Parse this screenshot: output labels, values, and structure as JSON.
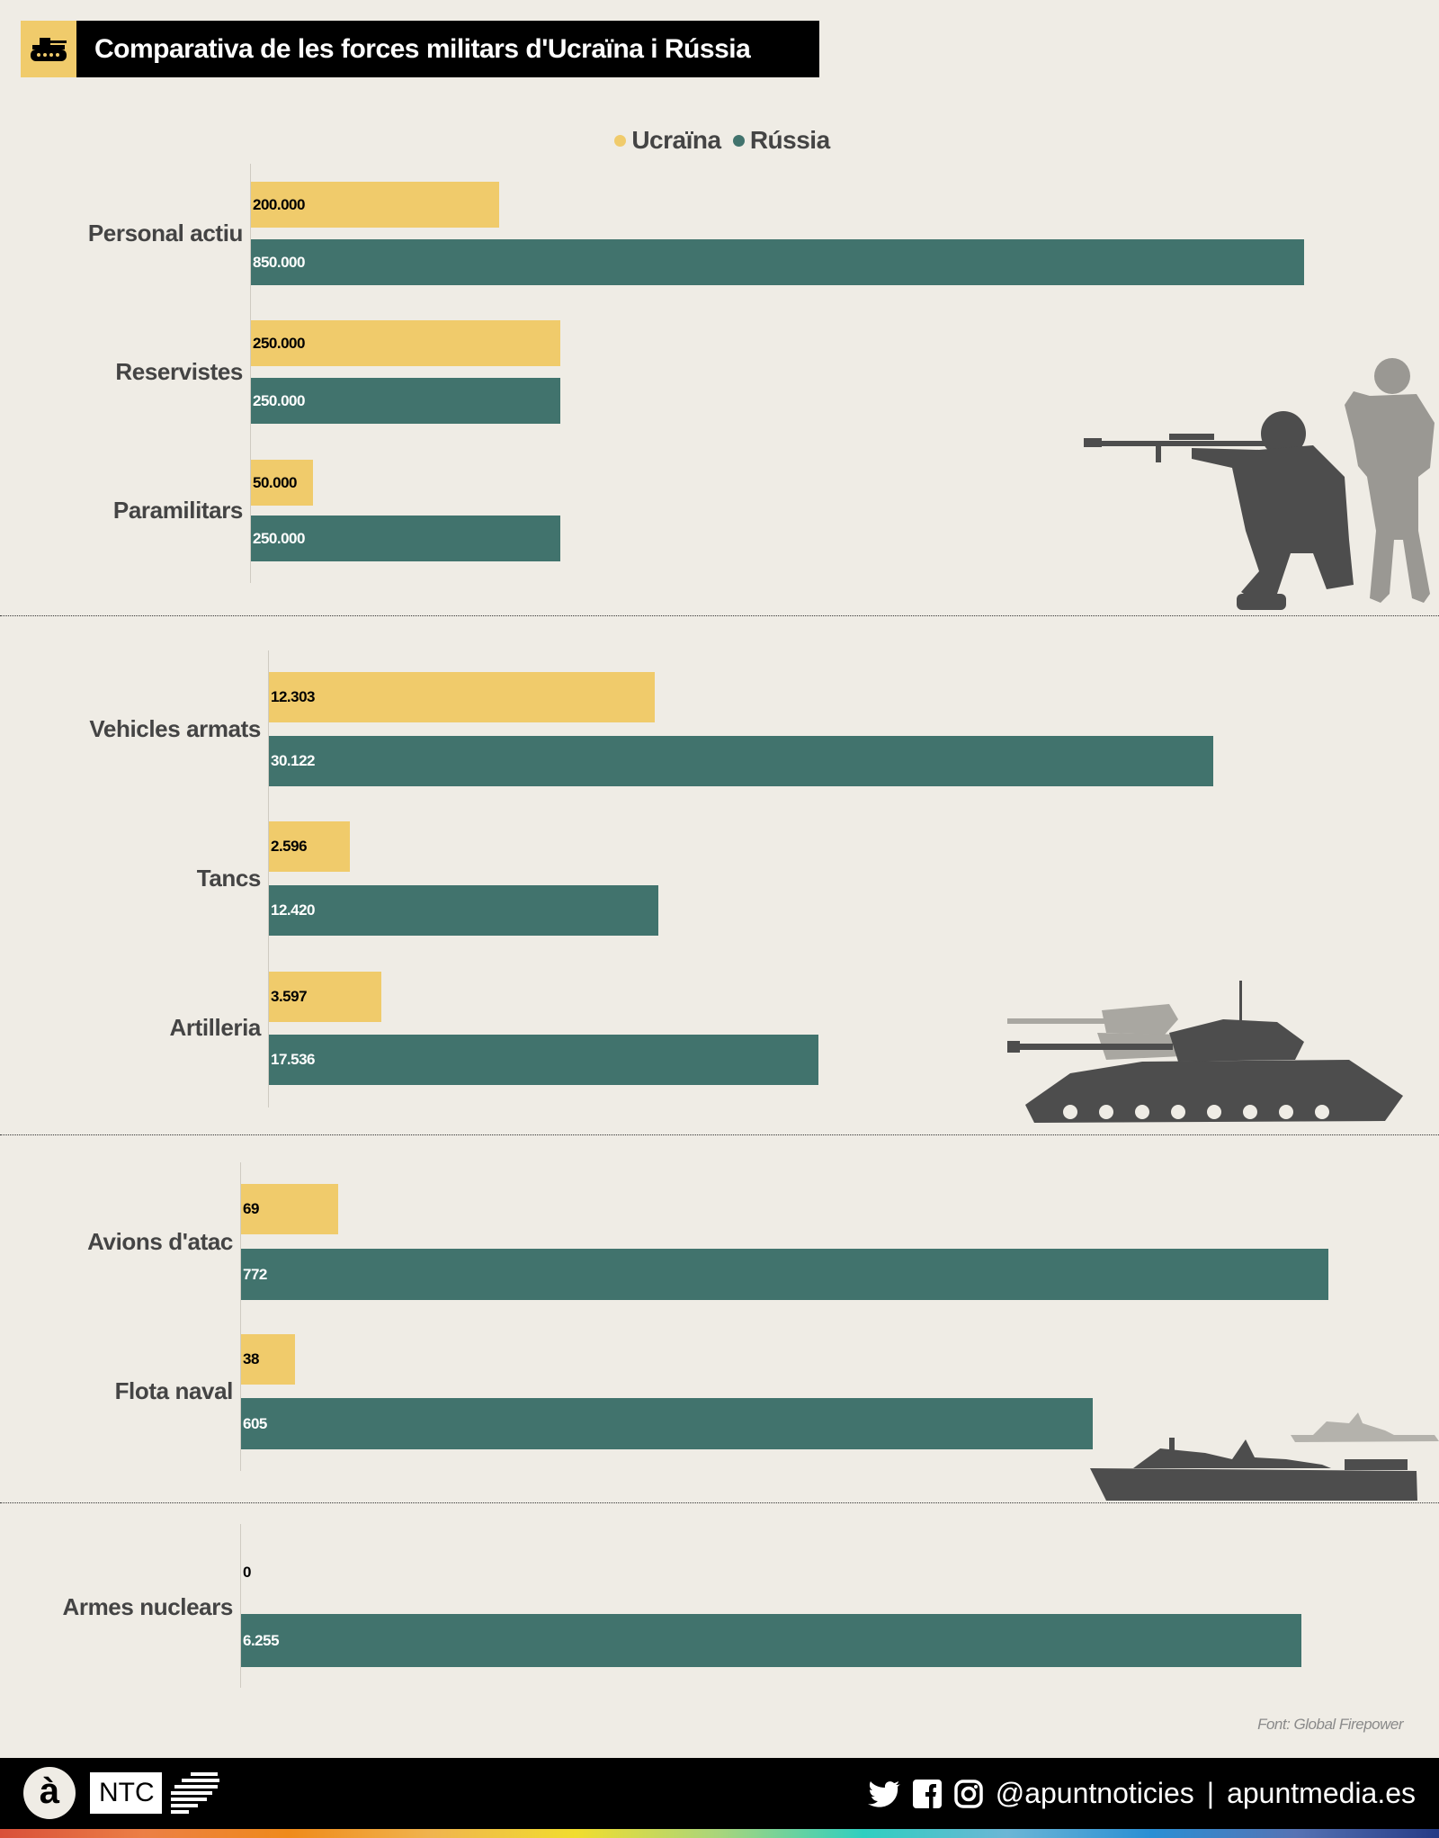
{
  "header": {
    "title": "Comparativa de les forces militars d'Ucraïna i Rússia",
    "icon": "tank-icon"
  },
  "legend": {
    "ukraine": "Ucraïna",
    "russia": "Rússia"
  },
  "colors": {
    "ukraine": "#f0cb6b",
    "russia": "#41736d",
    "background": "#efece5"
  },
  "chart_data": [
    {
      "type": "bar",
      "orientation": "horizontal",
      "categories": [
        "Personal actiu",
        "Reservistes",
        "Paramilitars"
      ],
      "series": [
        {
          "name": "Ucraïna",
          "values": [
            200000,
            250000,
            50000
          ]
        },
        {
          "name": "Rússia",
          "values": [
            850000,
            250000,
            250000
          ]
        }
      ]
    },
    {
      "type": "bar",
      "orientation": "horizontal",
      "categories": [
        "Vehicles armats",
        "Tancs",
        "Artilleria"
      ],
      "series": [
        {
          "name": "Ucraïna",
          "values": [
            12303,
            2596,
            3597
          ]
        },
        {
          "name": "Rússia",
          "values": [
            30122,
            12420,
            17536
          ]
        }
      ]
    },
    {
      "type": "bar",
      "orientation": "horizontal",
      "categories": [
        "Avions d'atac",
        "Flota naval"
      ],
      "series": [
        {
          "name": "Ucraïna",
          "values": [
            69,
            38
          ]
        },
        {
          "name": "Rússia",
          "values": [
            772,
            605
          ]
        }
      ]
    },
    {
      "type": "bar",
      "orientation": "horizontal",
      "categories": [
        "Armes nuclears"
      ],
      "series": [
        {
          "name": "Ucraïna",
          "values": [
            0
          ]
        },
        {
          "name": "Rússia",
          "values": [
            6255
          ]
        }
      ]
    }
  ],
  "source": "Font: Global Firepower",
  "footer": {
    "brand": "NTC",
    "logo_letter": "à",
    "handle": "@apuntnoticies",
    "separator": "|",
    "site": "apuntmedia.es",
    "icons": [
      "twitter-icon",
      "facebook-icon",
      "instagram-icon"
    ]
  }
}
